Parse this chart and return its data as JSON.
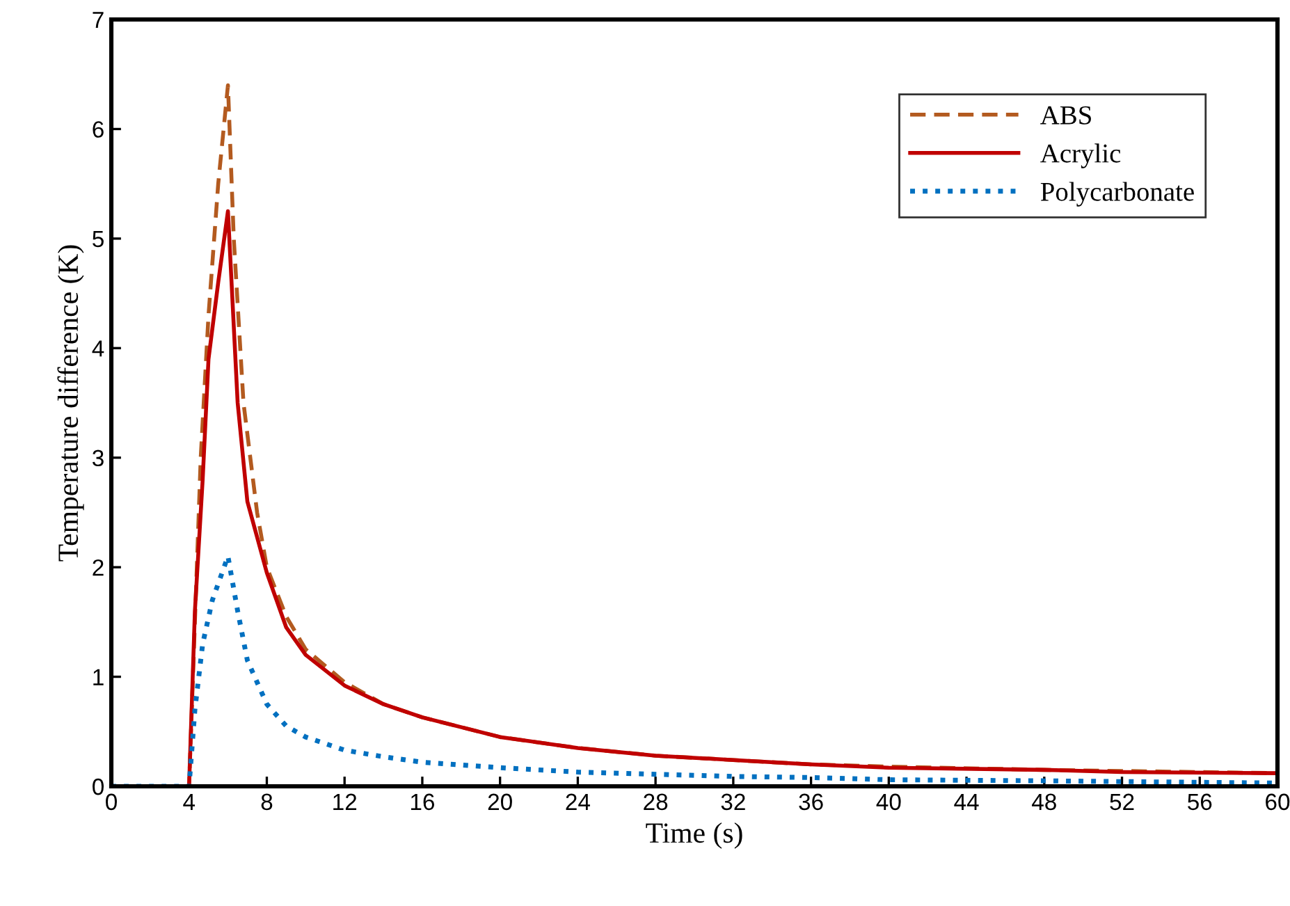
{
  "chart_data": {
    "type": "line",
    "xlabel": "Time (s)",
    "ylabel": "Temperature difference (K)",
    "xlim": [
      0,
      60
    ],
    "ylim": [
      0,
      7
    ],
    "xticks": [
      0,
      4,
      8,
      12,
      16,
      20,
      24,
      28,
      32,
      36,
      40,
      44,
      48,
      52,
      56,
      60
    ],
    "yticks": [
      0,
      1,
      2,
      3,
      4,
      5,
      6,
      7
    ],
    "grid": false,
    "legend": "top right",
    "series": [
      {
        "name": "ABS",
        "color": "#b35a1f",
        "line_style": "dashed",
        "x": [
          0,
          4,
          4.3,
          4.6,
          5,
          5.5,
          6,
          6.3,
          6.8,
          7.5,
          8,
          9,
          10,
          12,
          14,
          16,
          20,
          24,
          28,
          32,
          36,
          40,
          48,
          52,
          60
        ],
        "values": [
          0,
          0,
          1.5,
          3,
          4.3,
          5.5,
          6.4,
          5,
          3.5,
          2.5,
          2.0,
          1.55,
          1.25,
          0.95,
          0.75,
          0.63,
          0.45,
          0.35,
          0.28,
          0.24,
          0.2,
          0.18,
          0.15,
          0.14,
          0.12
        ]
      },
      {
        "name": "Acrylic",
        "color": "#c00000",
        "line_style": "solid",
        "x": [
          0,
          4,
          4.3,
          4.7,
          5,
          5.5,
          6,
          6.5,
          7,
          8,
          9,
          10,
          12,
          14,
          16,
          20,
          24,
          28,
          32,
          36,
          40,
          48,
          52,
          60
        ],
        "values": [
          0,
          0,
          1.6,
          2.8,
          3.9,
          4.6,
          5.25,
          3.5,
          2.6,
          1.95,
          1.45,
          1.2,
          0.92,
          0.75,
          0.63,
          0.45,
          0.35,
          0.28,
          0.24,
          0.2,
          0.17,
          0.15,
          0.13,
          0.12
        ]
      },
      {
        "name": "Polycarbonate",
        "color": "#0070c0",
        "line_style": "dotted",
        "x": [
          0,
          4,
          4.3,
          4.7,
          5.2,
          5.7,
          6,
          6.5,
          7,
          8,
          9,
          10,
          12,
          14,
          16,
          20,
          24,
          28,
          32,
          36,
          40,
          48,
          60
        ],
        "values": [
          0,
          0,
          0.7,
          1.3,
          1.7,
          1.95,
          2.1,
          1.6,
          1.15,
          0.75,
          0.55,
          0.45,
          0.33,
          0.27,
          0.22,
          0.17,
          0.13,
          0.11,
          0.09,
          0.08,
          0.06,
          0.05,
          0.03
        ]
      }
    ]
  }
}
